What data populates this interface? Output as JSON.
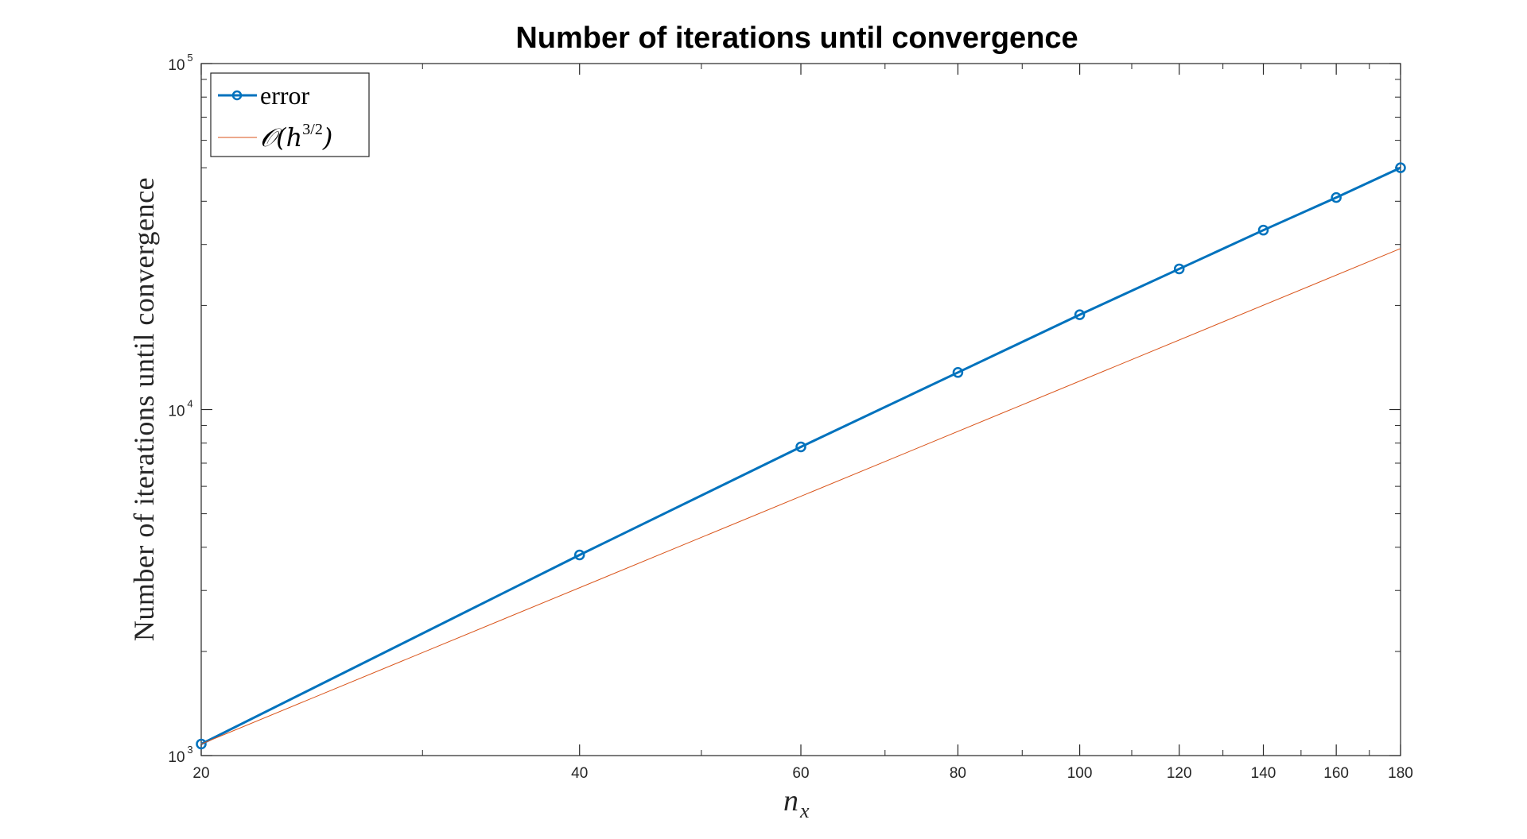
{
  "chart_data": {
    "type": "line",
    "title": "Number of iterations until convergence",
    "xlabel": "n",
    "xlabel_subscript": "x",
    "ylabel": "Number of iterations until convergence",
    "xscale": "log",
    "yscale": "log",
    "xlim": [
      20,
      180
    ],
    "ylim": [
      1000,
      100000
    ],
    "xticks": [
      20,
      40,
      60,
      80,
      100,
      120,
      140,
      160,
      180
    ],
    "xtick_labels": [
      "20",
      "40",
      "60",
      "80",
      "100",
      "120",
      "140",
      "160",
      "180"
    ],
    "yticks": [
      1000,
      10000,
      100000
    ],
    "ytick_bases": [
      "10",
      "10",
      "10"
    ],
    "ytick_exponents": [
      "3",
      "4",
      "5"
    ],
    "grid": false,
    "legend_position": "top-left",
    "series": [
      {
        "name": "error",
        "color": "#0072BD",
        "marker": "circle",
        "x": [
          20,
          40,
          60,
          80,
          100,
          120,
          140,
          160,
          180
        ],
        "y": [
          1080,
          3800,
          7800,
          12800,
          18800,
          25500,
          33000,
          41000,
          50000
        ]
      },
      {
        "name_parts": {
          "prefix": "𝒪(h",
          "superscript": "3/2",
          "suffix": ")"
        },
        "color": "#D95319",
        "marker": "none",
        "x": [
          20,
          180
        ],
        "y": [
          1080,
          29200
        ]
      }
    ]
  }
}
